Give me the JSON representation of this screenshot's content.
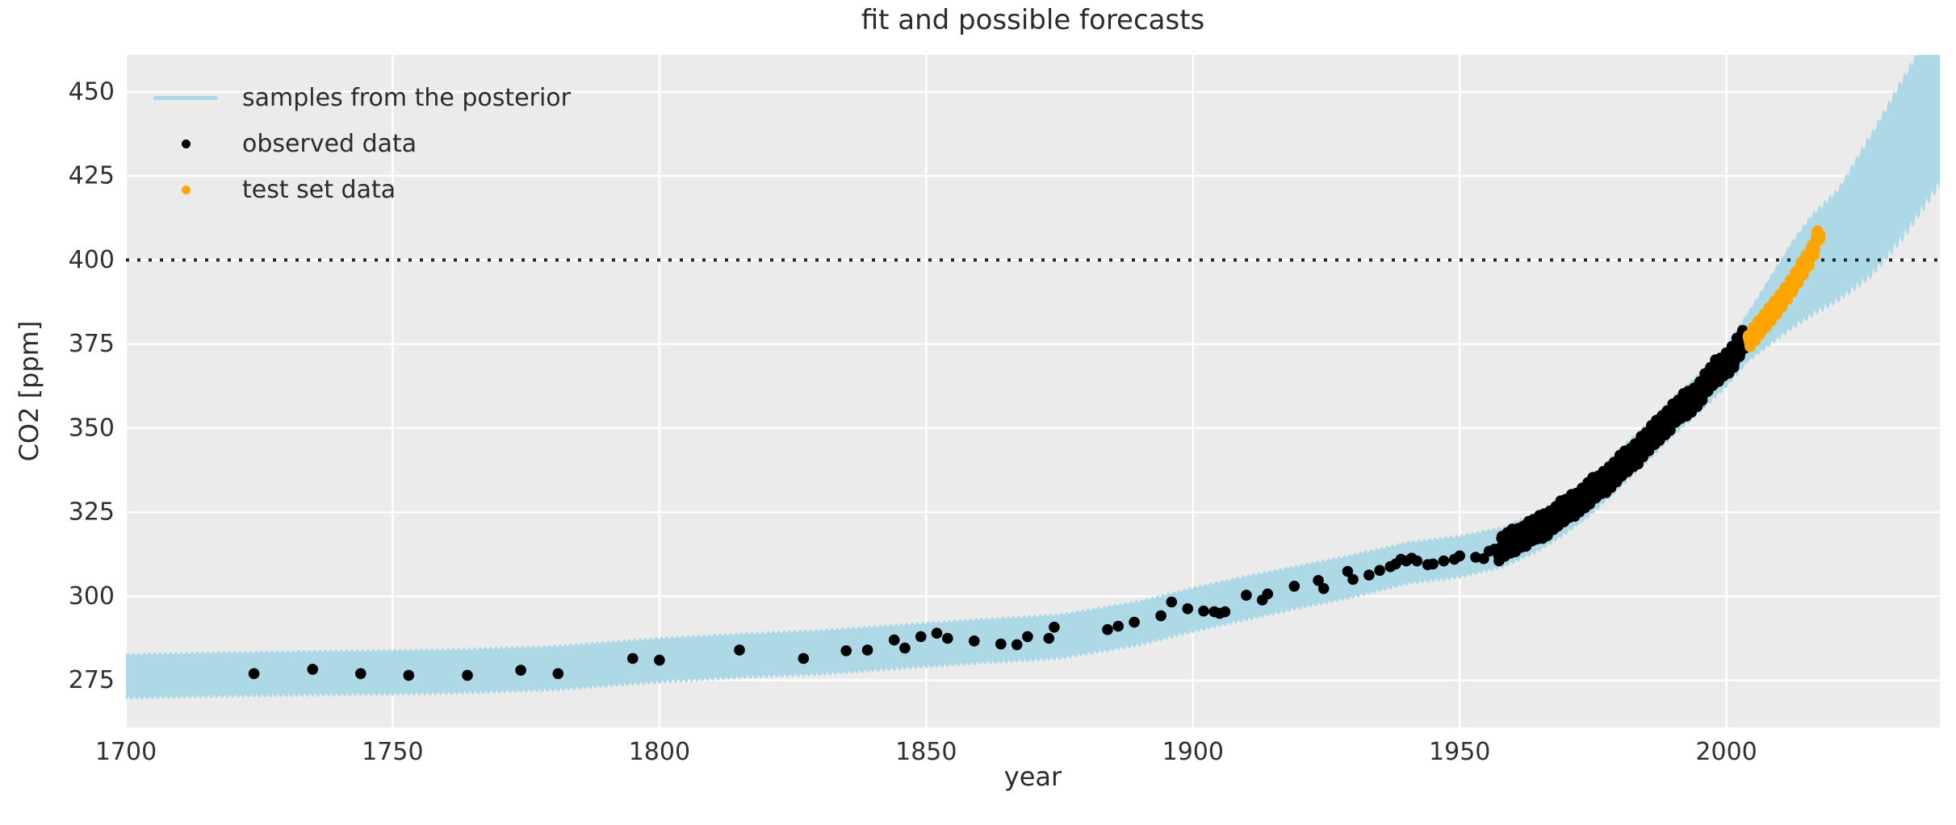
{
  "figure": {
    "title": "fit and possible forecasts",
    "xlabel": "year",
    "ylabel": "CO2 [ppm]"
  },
  "legend": {
    "items": [
      {
        "label": "samples from the posterior",
        "marker": "line",
        "color": "#add8e6"
      },
      {
        "label": "observed data",
        "marker": "dot",
        "color": "#000000"
      },
      {
        "label": "test set data",
        "marker": "dot",
        "color": "#ffa500"
      }
    ]
  },
  "chart_data": {
    "type": "scatter",
    "title": "fit and possible forecasts",
    "xlabel": "year",
    "ylabel": "CO2 [ppm]",
    "xlim": [
      1700,
      2040
    ],
    "ylim": [
      261,
      461
    ],
    "xticks": [
      1700,
      1750,
      1800,
      1850,
      1900,
      1950,
      2000
    ],
    "yticks": [
      275,
      300,
      325,
      350,
      375,
      400,
      425,
      450
    ],
    "grid": true,
    "legend_position": "upper left",
    "colors": {
      "plot_background": "#ebebeb",
      "gridline": "#ffffff",
      "band": "#add8e6",
      "observed": "#000000",
      "test": "#ffa500",
      "reference_line": "#262626",
      "text": "#303030"
    },
    "reference_line": {
      "y": 400,
      "style": "dotted"
    },
    "posterior_band": {
      "name": "samples from the posterior",
      "seasonal_period_years": 1,
      "anchors_year_center_halfwidth": [
        [
          1700,
          276.2,
          5.8
        ],
        [
          1720,
          276.8,
          5.8
        ],
        [
          1740,
          277.2,
          5.8
        ],
        [
          1760,
          277.6,
          5.8
        ],
        [
          1780,
          278.6,
          5.8
        ],
        [
          1800,
          281.0,
          5.8
        ],
        [
          1815,
          282.3,
          5.8
        ],
        [
          1830,
          283.3,
          5.8
        ],
        [
          1845,
          285.0,
          5.8
        ],
        [
          1860,
          286.6,
          5.8
        ],
        [
          1875,
          288.0,
          5.8
        ],
        [
          1890,
          292.0,
          5.8
        ],
        [
          1900,
          296.0,
          5.8
        ],
        [
          1910,
          299.5,
          5.8
        ],
        [
          1920,
          302.8,
          5.6
        ],
        [
          1930,
          306.0,
          5.6
        ],
        [
          1940,
          309.8,
          5.4
        ],
        [
          1950,
          311.8,
          5.4
        ],
        [
          1958,
          314.5,
          5.2
        ],
        [
          1965,
          319.5,
          5.1
        ],
        [
          1970,
          324.5,
          5.0
        ],
        [
          1975,
          330.5,
          5.0
        ],
        [
          1980,
          338.0,
          5.0
        ],
        [
          1985,
          345.5,
          5.0
        ],
        [
          1990,
          353.5,
          5.0
        ],
        [
          1995,
          360.5,
          5.0
        ],
        [
          2000,
          368.5,
          5.4
        ],
        [
          2004,
          377.0,
          6.5
        ],
        [
          2008,
          384.5,
          9.0
        ],
        [
          2012,
          392.0,
          11.5
        ],
        [
          2016,
          398.5,
          13.5
        ],
        [
          2021,
          404.5,
          15.0
        ],
        [
          2027,
          416.0,
          19.0
        ],
        [
          2033,
          430.0,
          21.5
        ],
        [
          2040,
          448.0,
          23.0
        ]
      ]
    },
    "observed_sparse": [
      [
        1724,
        277.0
      ],
      [
        1735,
        278.3
      ],
      [
        1744,
        277.0
      ],
      [
        1753,
        276.5
      ],
      [
        1764,
        276.5
      ],
      [
        1774,
        278.0
      ],
      [
        1781,
        277.0
      ],
      [
        1795,
        281.5
      ],
      [
        1800,
        281.0
      ],
      [
        1815,
        284.0
      ],
      [
        1827,
        281.5
      ],
      [
        1835,
        283.8
      ],
      [
        1839,
        284.0
      ],
      [
        1844,
        287.0
      ],
      [
        1846,
        284.6
      ],
      [
        1849,
        288.0
      ],
      [
        1852,
        289.0
      ],
      [
        1854,
        287.5
      ],
      [
        1859,
        286.7
      ],
      [
        1864,
        285.8
      ],
      [
        1867,
        285.6
      ],
      [
        1869,
        288.0
      ],
      [
        1873,
        287.5
      ],
      [
        1874,
        290.8
      ],
      [
        1884,
        290.1
      ],
      [
        1886,
        291.1
      ],
      [
        1889,
        292.3
      ],
      [
        1894,
        294.2
      ],
      [
        1896,
        298.3
      ],
      [
        1899,
        296.3
      ],
      [
        1902,
        295.6
      ],
      [
        1904,
        295.4
      ],
      [
        1905,
        294.9
      ],
      [
        1906,
        295.4
      ],
      [
        1910,
        300.3
      ],
      [
        1913,
        298.9
      ],
      [
        1914,
        300.7
      ],
      [
        1919,
        303.0
      ],
      [
        1923.5,
        304.7
      ],
      [
        1924.5,
        302.3
      ],
      [
        1929,
        307.4
      ],
      [
        1930,
        305.0
      ],
      [
        1933,
        306.3
      ],
      [
        1935,
        307.7
      ],
      [
        1937,
        308.8
      ],
      [
        1938,
        309.6
      ],
      [
        1939,
        311.0
      ],
      [
        1940,
        310.5
      ],
      [
        1941,
        311.3
      ],
      [
        1942,
        310.5
      ],
      [
        1944,
        309.4
      ],
      [
        1945,
        309.6
      ],
      [
        1947,
        310.5
      ],
      [
        1949,
        311.0
      ],
      [
        1950,
        312.0
      ],
      [
        1953,
        311.6
      ],
      [
        1954.5,
        311.2
      ],
      [
        1955.5,
        313.4
      ],
      [
        1956.5,
        314.0
      ]
    ],
    "observed_dense": {
      "description": "monthly observations drawn as overlapping dots",
      "start": 1957.2,
      "end": 2003.6,
      "points_per_year": 12,
      "seasonal_amplitude_ppm": 2.9,
      "trend": [
        [
          1957,
          313.4
        ],
        [
          1960,
          316.8
        ],
        [
          1963,
          318.9
        ],
        [
          1966,
          321.3
        ],
        [
          1970,
          325.6
        ],
        [
          1974,
          330.1
        ],
        [
          1978,
          335.3
        ],
        [
          1982,
          341.1
        ],
        [
          1986,
          347.4
        ],
        [
          1990,
          354.1
        ],
        [
          1994,
          358.8
        ],
        [
          1998,
          366.5
        ],
        [
          2001,
          370.7
        ],
        [
          2003.6,
          377.0
        ]
      ]
    },
    "test_set": {
      "description": "monthly test observations drawn as overlapping dots",
      "start": 2004.0,
      "end": 2017.6,
      "points_per_year": 12,
      "seasonal_amplitude_ppm": 2.2,
      "trend": [
        [
          2004,
          375.5
        ],
        [
          2006,
          379.5
        ],
        [
          2008,
          383.5
        ],
        [
          2010,
          387.5
        ],
        [
          2012,
          392.0
        ],
        [
          2014,
          397.0
        ],
        [
          2016,
          402.0
        ],
        [
          2017.6,
          409.0
        ]
      ]
    }
  }
}
